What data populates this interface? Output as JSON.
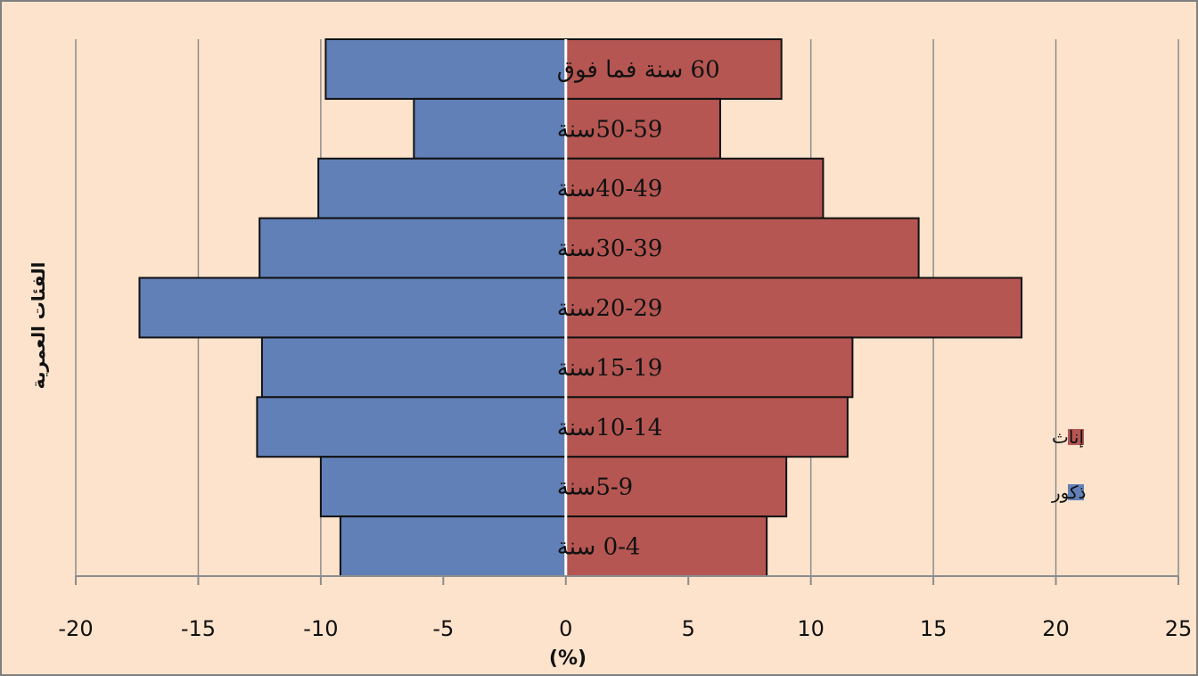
{
  "colors": {
    "background": "#fde3cc",
    "border": "#7f7f7f",
    "grid": "#8c8c8c",
    "male": "#6180b7",
    "female": "#b55652",
    "bar_stroke": "#111111"
  },
  "chart_data": {
    "type": "bar",
    "orientation": "horizontal",
    "layout": "population-pyramid",
    "ylabel": "الفئات العمرية",
    "xlabel": "(%)",
    "xlim": [
      -20,
      25
    ],
    "xticks": [
      -20,
      -15,
      -10,
      -5,
      0,
      5,
      10,
      15,
      20,
      25
    ],
    "grid": true,
    "legend_position": "right",
    "categories": [
      "60 سنة فما فوق",
      "50-59سنة",
      "40-49سنة",
      "30-39سنة",
      "20-29سنة",
      "15-19سنة",
      "10-14سنة",
      "5-9سنة",
      "0-4 سنة"
    ],
    "series": [
      {
        "name": "ذكور",
        "color": "#6180b7",
        "values": [
          -9.8,
          -6.2,
          -10.1,
          -12.5,
          -17.4,
          -12.4,
          -12.6,
          -10.0,
          -9.2
        ]
      },
      {
        "name": "إناث",
        "color": "#b55652",
        "values": [
          8.8,
          6.3,
          10.5,
          14.4,
          18.6,
          11.7,
          11.5,
          9.0,
          8.2
        ]
      }
    ],
    "legend": [
      {
        "name": "إناث",
        "color": "#b55652"
      },
      {
        "name": "ذكور",
        "color": "#6180b7"
      }
    ]
  }
}
